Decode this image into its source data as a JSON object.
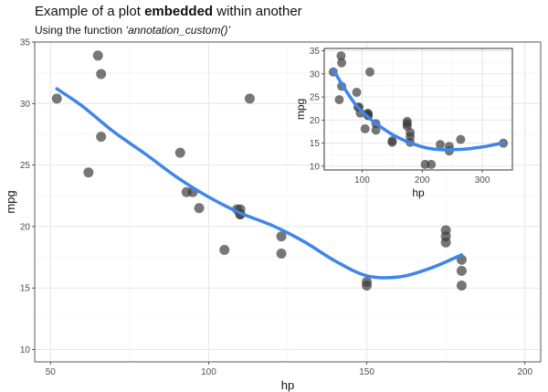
{
  "title": {
    "before": "Example of a plot ",
    "bold": "embedded",
    "after": " within another"
  },
  "subtitle": {
    "before": "Using the function ",
    "italic": "‘annotation_custom()’"
  },
  "colors": {
    "point": "#3d3d3d",
    "smooth": "#3f86e8",
    "grid_major": "#e6e6e6",
    "grid_minor": "#f2f2f2",
    "panel_border": "#333333"
  },
  "chart_data": [
    {
      "type": "scatter",
      "name": "main",
      "xlabel": "hp",
      "ylabel": "mpg",
      "xlim": [
        45,
        205
      ],
      "ylim": [
        9,
        35
      ],
      "xticks": [
        50,
        100,
        150,
        200
      ],
      "yticks": [
        10,
        15,
        20,
        25,
        30,
        35
      ],
      "points": [
        {
          "x": 52,
          "y": 30.4
        },
        {
          "x": 62,
          "y": 24.4
        },
        {
          "x": 65,
          "y": 33.9
        },
        {
          "x": 66,
          "y": 32.4
        },
        {
          "x": 66,
          "y": 27.3
        },
        {
          "x": 91,
          "y": 26.0
        },
        {
          "x": 93,
          "y": 22.8
        },
        {
          "x": 95,
          "y": 22.8
        },
        {
          "x": 97,
          "y": 21.5
        },
        {
          "x": 105,
          "y": 18.1
        },
        {
          "x": 109,
          "y": 21.4
        },
        {
          "x": 110,
          "y": 21.0
        },
        {
          "x": 110,
          "y": 21.0
        },
        {
          "x": 110,
          "y": 21.4
        },
        {
          "x": 113,
          "y": 30.4
        },
        {
          "x": 123,
          "y": 19.2
        },
        {
          "x": 123,
          "y": 17.8
        },
        {
          "x": 150,
          "y": 15.5
        },
        {
          "x": 150,
          "y": 15.2
        },
        {
          "x": 175,
          "y": 19.7
        },
        {
          "x": 175,
          "y": 19.2
        },
        {
          "x": 175,
          "y": 18.7
        },
        {
          "x": 180,
          "y": 17.3
        },
        {
          "x": 180,
          "y": 16.4
        },
        {
          "x": 180,
          "y": 15.2
        }
      ],
      "smooth": {
        "x": [
          52,
          60,
          70,
          80,
          90,
          100,
          110,
          120,
          130,
          140,
          150,
          160,
          170,
          180
        ],
        "y": [
          31.2,
          29.8,
          27.7,
          25.9,
          24.0,
          22.4,
          21.1,
          20.1,
          18.8,
          17.2,
          16.0,
          15.9,
          16.6,
          17.7
        ]
      }
    },
    {
      "type": "scatter",
      "name": "inset",
      "xlabel": "hp",
      "ylabel": "mpg",
      "xlim": [
        37,
        350
      ],
      "ylim": [
        9.2,
        35.5
      ],
      "xticks": [
        100,
        200,
        300
      ],
      "yticks": [
        10,
        15,
        20,
        25,
        30,
        35
      ],
      "points": [
        {
          "x": 52,
          "y": 30.4
        },
        {
          "x": 62,
          "y": 24.4
        },
        {
          "x": 65,
          "y": 33.9
        },
        {
          "x": 66,
          "y": 32.4
        },
        {
          "x": 66,
          "y": 27.3
        },
        {
          "x": 91,
          "y": 26.0
        },
        {
          "x": 93,
          "y": 22.8
        },
        {
          "x": 95,
          "y": 22.8
        },
        {
          "x": 97,
          "y": 21.5
        },
        {
          "x": 105,
          "y": 18.1
        },
        {
          "x": 109,
          "y": 21.4
        },
        {
          "x": 110,
          "y": 21.0
        },
        {
          "x": 110,
          "y": 21.0
        },
        {
          "x": 110,
          "y": 21.4
        },
        {
          "x": 113,
          "y": 30.4
        },
        {
          "x": 123,
          "y": 19.2
        },
        {
          "x": 123,
          "y": 17.8
        },
        {
          "x": 150,
          "y": 15.5
        },
        {
          "x": 150,
          "y": 15.2
        },
        {
          "x": 175,
          "y": 19.7
        },
        {
          "x": 175,
          "y": 19.2
        },
        {
          "x": 175,
          "y": 18.7
        },
        {
          "x": 180,
          "y": 17.3
        },
        {
          "x": 180,
          "y": 16.4
        },
        {
          "x": 180,
          "y": 15.2
        },
        {
          "x": 205,
          "y": 10.4
        },
        {
          "x": 215,
          "y": 10.4
        },
        {
          "x": 230,
          "y": 14.7
        },
        {
          "x": 245,
          "y": 14.3
        },
        {
          "x": 245,
          "y": 13.3
        },
        {
          "x": 264,
          "y": 15.8
        },
        {
          "x": 335,
          "y": 15.0
        }
      ],
      "smooth": {
        "x": [
          52,
          70,
          90,
          110,
          130,
          150,
          170,
          190,
          210,
          230,
          250,
          270,
          290,
          310,
          335
        ],
        "y": [
          30.9,
          27.0,
          23.2,
          20.6,
          18.6,
          16.9,
          15.6,
          14.6,
          13.9,
          13.6,
          13.6,
          13.7,
          14.0,
          14.4,
          15.1
        ]
      }
    }
  ]
}
